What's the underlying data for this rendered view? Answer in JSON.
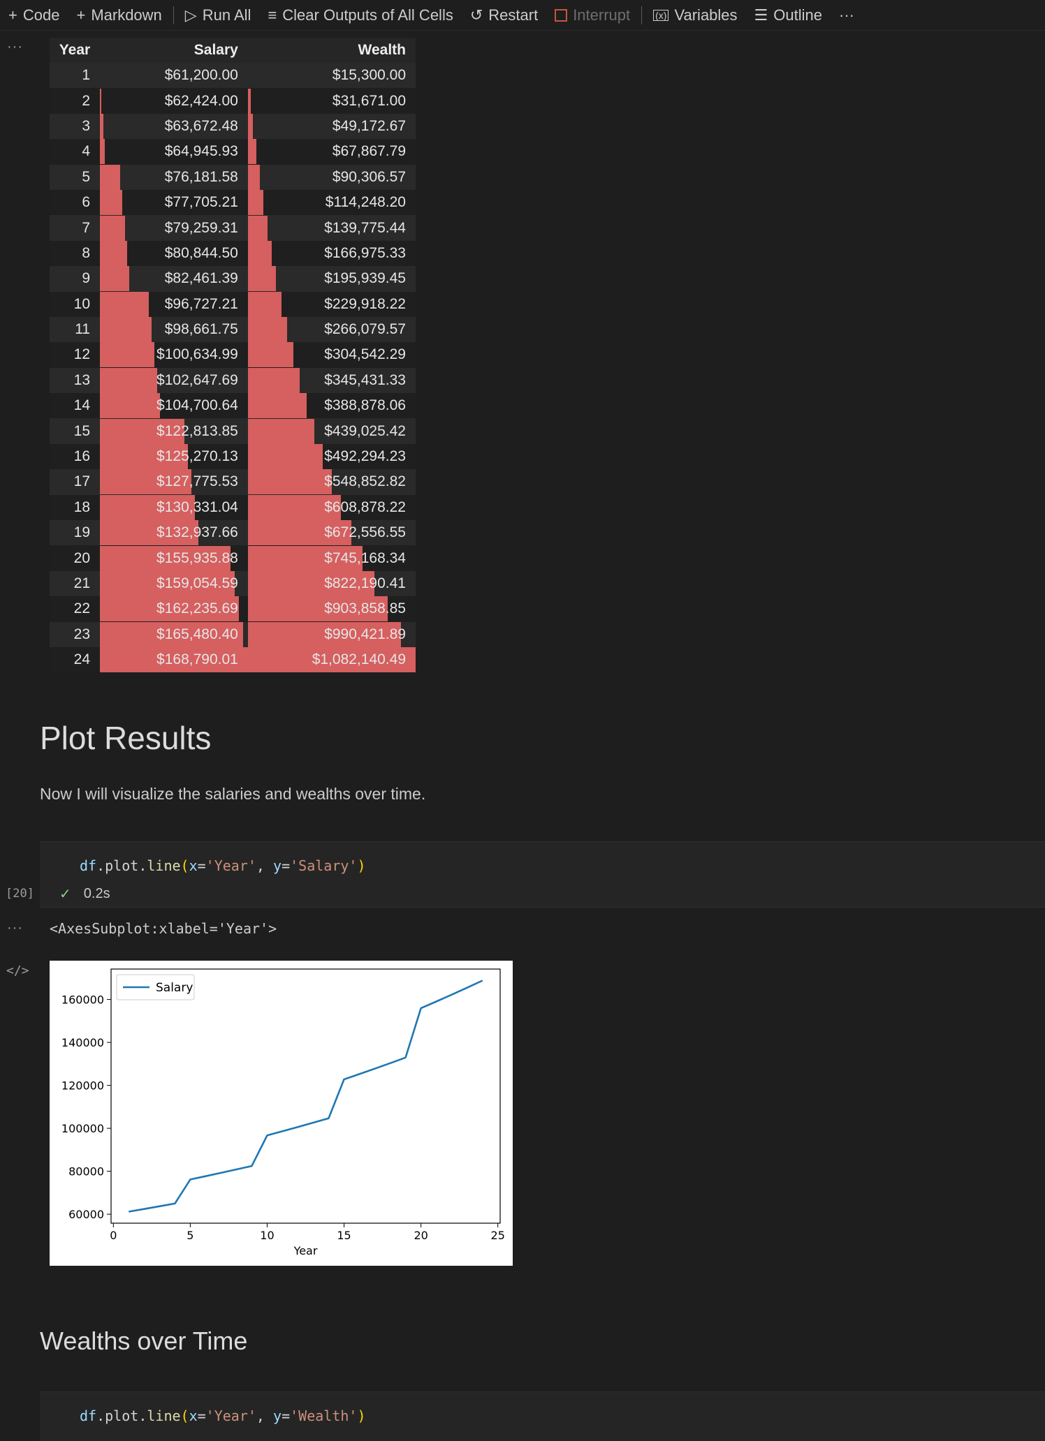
{
  "toolbar": {
    "code": "Code",
    "markdown": "Markdown",
    "run_all": "Run All",
    "clear_outputs": "Clear Outputs of All Cells",
    "restart": "Restart",
    "interrupt": "Interrupt",
    "variables": "Variables",
    "outline": "Outline",
    "more": "···"
  },
  "table": {
    "headers": [
      "Year",
      "Salary",
      "Wealth"
    ],
    "rows": [
      {
        "year": "1",
        "salary": "$61,200.00",
        "wealth": "$15,300.00"
      },
      {
        "year": "2",
        "salary": "$62,424.00",
        "wealth": "$31,671.00"
      },
      {
        "year": "3",
        "salary": "$63,672.48",
        "wealth": "$49,172.67"
      },
      {
        "year": "4",
        "salary": "$64,945.93",
        "wealth": "$67,867.79"
      },
      {
        "year": "5",
        "salary": "$76,181.58",
        "wealth": "$90,306.57"
      },
      {
        "year": "6",
        "salary": "$77,705.21",
        "wealth": "$114,248.20"
      },
      {
        "year": "7",
        "salary": "$79,259.31",
        "wealth": "$139,775.44"
      },
      {
        "year": "8",
        "salary": "$80,844.50",
        "wealth": "$166,975.33"
      },
      {
        "year": "9",
        "salary": "$82,461.39",
        "wealth": "$195,939.45"
      },
      {
        "year": "10",
        "salary": "$96,727.21",
        "wealth": "$229,918.22"
      },
      {
        "year": "11",
        "salary": "$98,661.75",
        "wealth": "$266,079.57"
      },
      {
        "year": "12",
        "salary": "$100,634.99",
        "wealth": "$304,542.29"
      },
      {
        "year": "13",
        "salary": "$102,647.69",
        "wealth": "$345,431.33"
      },
      {
        "year": "14",
        "salary": "$104,700.64",
        "wealth": "$388,878.06"
      },
      {
        "year": "15",
        "salary": "$122,813.85",
        "wealth": "$439,025.42"
      },
      {
        "year": "16",
        "salary": "$125,270.13",
        "wealth": "$492,294.23"
      },
      {
        "year": "17",
        "salary": "$127,775.53",
        "wealth": "$548,852.82"
      },
      {
        "year": "18",
        "salary": "$130,331.04",
        "wealth": "$608,878.22"
      },
      {
        "year": "19",
        "salary": "$132,937.66",
        "wealth": "$672,556.55"
      },
      {
        "year": "20",
        "salary": "$155,935.88",
        "wealth": "$745,168.34"
      },
      {
        "year": "21",
        "salary": "$159,054.59",
        "wealth": "$822,190.41"
      },
      {
        "year": "22",
        "salary": "$162,235.69",
        "wealth": "$903,858.85"
      },
      {
        "year": "23",
        "salary": "$165,480.40",
        "wealth": "$990,421.89"
      },
      {
        "year": "24",
        "salary": "$168,790.01",
        "wealth": "$1,082,140.49"
      }
    ],
    "bar_color": "#d65f5f"
  },
  "markdown": {
    "heading": "Plot Results",
    "paragraph": "Now I will visualize the salaries and wealths over time.",
    "heading2": "Wealths over Time"
  },
  "cell1": {
    "exec_count": "[20]",
    "code": {
      "var": "df",
      "dot1": ".",
      "attr1": "plot",
      "dot2": ".",
      "fn": "line",
      "open": "(",
      "p1": "x",
      "eq1": "=",
      "s1": "'Year'",
      "comma": ", ",
      "p2": "y",
      "eq2": "=",
      "s2": "'Salary'",
      "close": ")"
    },
    "duration": "0.2s",
    "output_text": "<AxesSubplot:xlabel='Year'>"
  },
  "cell2": {
    "code": {
      "var": "df",
      "dot1": ".",
      "attr1": "plot",
      "dot2": ".",
      "fn": "line",
      "open": "(",
      "p1": "x",
      "eq1": "=",
      "s1": "'Year'",
      "comma": ", ",
      "p2": "y",
      "eq2": "=",
      "s2": "'Wealth'",
      "close": ")"
    }
  },
  "chart_data": {
    "type": "line",
    "xlabel": "Year",
    "ylabel": "",
    "xlim": [
      -0.15,
      25.15
    ],
    "ylim": [
      55820,
      174170
    ],
    "xticks": [
      0,
      5,
      10,
      15,
      20,
      25
    ],
    "yticks": [
      60000,
      80000,
      100000,
      120000,
      140000,
      160000
    ],
    "legend_position": "upper-left",
    "series": [
      {
        "name": "Salary",
        "color": "#1f77b4",
        "x": [
          1,
          2,
          3,
          4,
          5,
          6,
          7,
          8,
          9,
          10,
          11,
          12,
          13,
          14,
          15,
          16,
          17,
          18,
          19,
          20,
          21,
          22,
          23,
          24
        ],
        "y": [
          61200.0,
          62424.0,
          63672.48,
          64945.93,
          76181.58,
          77705.21,
          79259.31,
          80844.5,
          82461.39,
          96727.21,
          98661.75,
          100634.99,
          102647.69,
          104700.64,
          122813.85,
          125270.13,
          127775.53,
          130331.04,
          132937.66,
          155935.88,
          159054.59,
          162235.69,
          165480.4,
          168790.01
        ]
      }
    ]
  }
}
